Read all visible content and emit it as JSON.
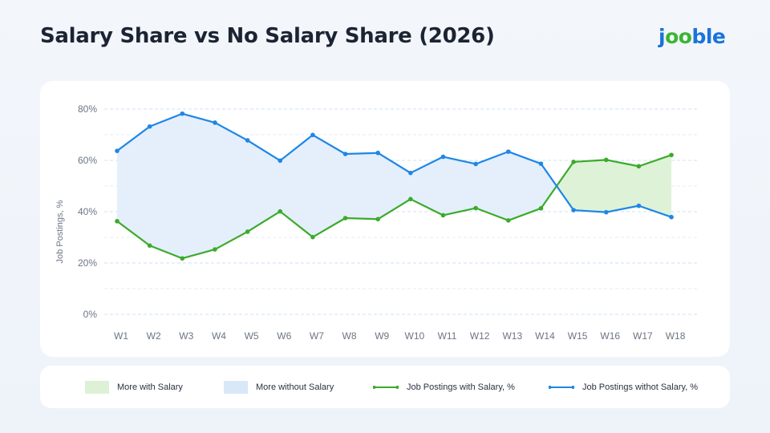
{
  "title": "Salary Share vs No Salary Share (2026)",
  "logo": {
    "part1": "j",
    "part2": "oo",
    "part3": "ble"
  },
  "colors": {
    "salary": "#3bab2a",
    "no_salary": "#1e86e6",
    "salary_fill": "#dcf1d6",
    "no_salary_fill": "#e3eefb",
    "grid": "#c9def3",
    "tick": "#6b7585"
  },
  "legend": {
    "more_with_salary": "More with Salary",
    "more_without_salary": "More without Salary",
    "with_salary": "Job Postings with Salary, %",
    "without_salary": "Job Postings withot Salary, %"
  },
  "chart_data": {
    "type": "line",
    "title": "Salary Share vs No Salary Share (2026)",
    "xlabel": "",
    "ylabel": "Job Postings, %",
    "ylim": [
      0,
      80
    ],
    "yticks": [
      "0%",
      "20%",
      "40%",
      "60%",
      "80%"
    ],
    "categories": [
      "W1",
      "W2",
      "W3",
      "W4",
      "W5",
      "W6",
      "W7",
      "W8",
      "W9",
      "W10",
      "W11",
      "W12",
      "W13",
      "W14",
      "W15",
      "W16",
      "W17",
      "W18"
    ],
    "series": [
      {
        "name": "Job Postings with Salary, %",
        "values": [
          36.3,
          26.8,
          21.8,
          25.3,
          32.2,
          40.1,
          30.1,
          37.5,
          37.1,
          44.9,
          38.6,
          41.4,
          36.6,
          41.3,
          59.4,
          60.2,
          57.7,
          62.1
        ]
      },
      {
        "name": "Job Postings withot Salary, %",
        "values": [
          63.7,
          73.2,
          78.2,
          74.7,
          67.8,
          59.9,
          69.9,
          62.5,
          62.9,
          55.1,
          61.4,
          58.6,
          63.4,
          58.7,
          40.6,
          39.8,
          42.3,
          37.9
        ]
      }
    ],
    "grid": true,
    "legend_position": "bottom"
  }
}
